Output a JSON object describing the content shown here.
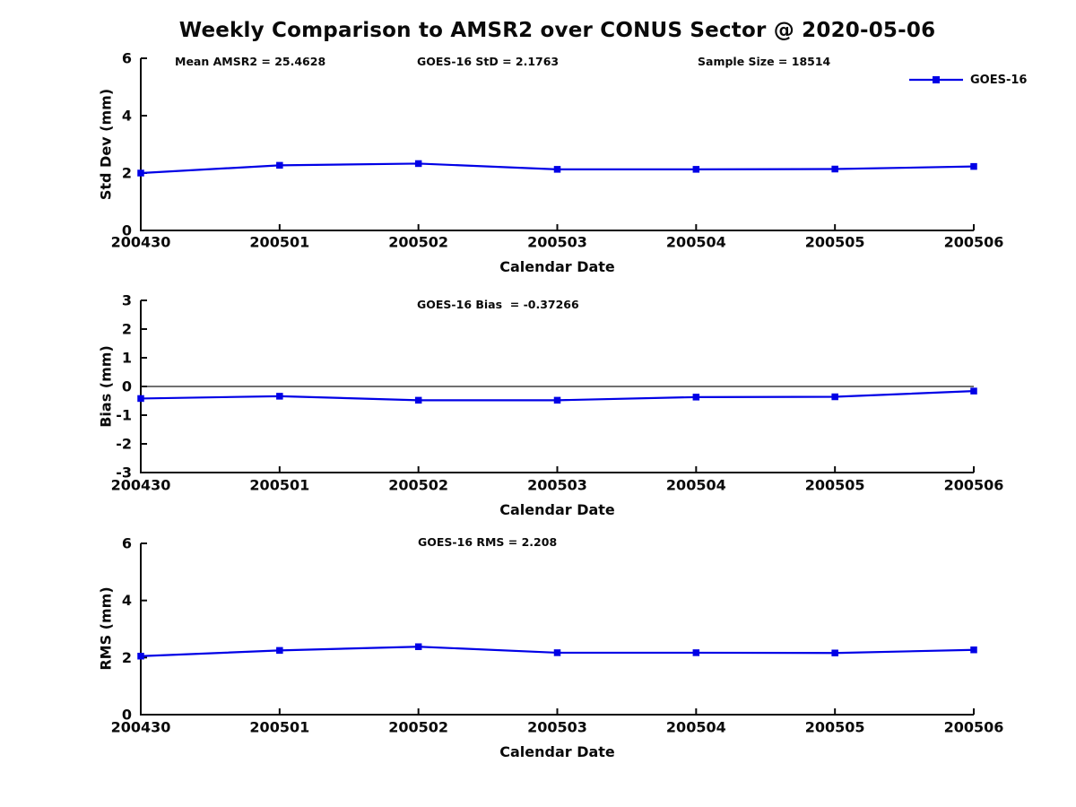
{
  "title": "Weekly Comparison to AMSR2 over CONUS Sector @ 2020-05-06",
  "xlabel": "Calendar Date",
  "legend": {
    "label": "GOES-16",
    "color": "#0000e6",
    "position": "top-right"
  },
  "chart_data": [
    {
      "type": "line",
      "ylabel": "Std Dev (mm)",
      "xlabel": "Calendar Date",
      "categories": [
        "200430",
        "200501",
        "200502",
        "200503",
        "200504",
        "200505",
        "200506"
      ],
      "series": [
        {
          "name": "GOES-16",
          "color": "#0000e6",
          "marker": "square",
          "values": [
            2.0,
            2.27,
            2.33,
            2.13,
            2.13,
            2.14,
            2.23
          ]
        }
      ],
      "ylim": [
        0,
        6
      ],
      "yticks": [
        0,
        2,
        4,
        6
      ],
      "grid": false,
      "zero_line": false,
      "annotations": [
        "Mean AMSR2 = 25.4628",
        "GOES-16 StD = 2.1763",
        "Sample Size = 18514"
      ],
      "legend": {
        "label": "GOES-16"
      }
    },
    {
      "type": "line",
      "ylabel": "Bias (mm)",
      "xlabel": "Calendar Date",
      "categories": [
        "200430",
        "200501",
        "200502",
        "200503",
        "200504",
        "200505",
        "200506"
      ],
      "series": [
        {
          "name": "GOES-16",
          "color": "#0000e6",
          "marker": "square",
          "values": [
            -0.42,
            -0.34,
            -0.48,
            -0.48,
            -0.37,
            -0.36,
            -0.16
          ]
        }
      ],
      "ylim": [
        -3,
        3
      ],
      "yticks": [
        3,
        2,
        1,
        0,
        -1,
        -2,
        -3
      ],
      "grid": false,
      "zero_line": true,
      "annotations": [
        "GOES-16 Bias  = -0.37266"
      ]
    },
    {
      "type": "line",
      "ylabel": "RMS (mm)",
      "xlabel": "Calendar Date",
      "categories": [
        "200430",
        "200501",
        "200502",
        "200503",
        "200504",
        "200505",
        "200506"
      ],
      "series": [
        {
          "name": "GOES-16",
          "color": "#0000e6",
          "marker": "square",
          "values": [
            2.05,
            2.25,
            2.38,
            2.17,
            2.17,
            2.16,
            2.27
          ]
        }
      ],
      "ylim": [
        0,
        6
      ],
      "yticks": [
        0,
        2,
        4,
        6
      ],
      "grid": false,
      "zero_line": false,
      "annotations": [
        "GOES-16 RMS = 2.208"
      ]
    }
  ]
}
